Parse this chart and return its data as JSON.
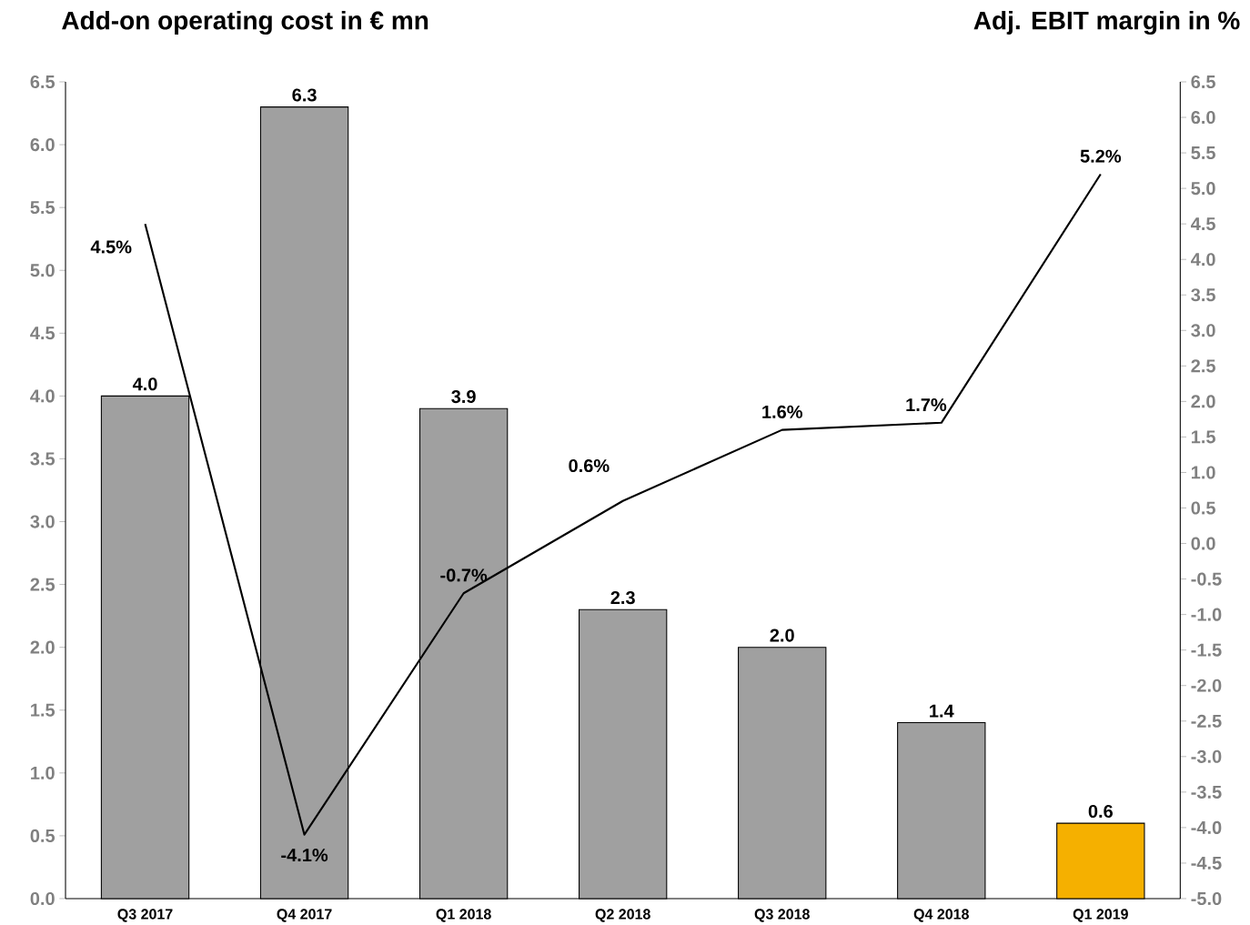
{
  "chart_data": {
    "type": "bar",
    "ylabel": "Add-on operating cost in € mn",
    "y2label": "Adj. EBIT margin in %",
    "categories": [
      "Q3 2017",
      "Q4 2017",
      "Q1 2018",
      "Q2 2018",
      "Q3 2018",
      "Q4 2018",
      "Q1 2019"
    ],
    "series": [
      {
        "colors": [
          "#a0a0a0",
          "#a0a0a0",
          "#a0a0a0",
          "#a0a0a0",
          "#a0a0a0",
          "#a0a0a0",
          "#f5b000"
        ],
        "values": [
          4.0,
          6.3,
          3.9,
          2.3,
          2.0,
          1.4,
          0.6
        ],
        "value_labels": [
          "4.0",
          "6.3",
          "3.9",
          "2.3",
          "2.0",
          "1.4",
          "0.6"
        ]
      },
      {
        "type": "line",
        "axis": "y2",
        "color": "#000000",
        "values": [
          4.5,
          -4.1,
          -0.7,
          0.6,
          1.6,
          1.7,
          5.2
        ],
        "value_labels": [
          "4.5%",
          "-4.1%",
          "-0.7%",
          "0.6%",
          "1.6%",
          "1.7%",
          "5.2%"
        ]
      }
    ],
    "ylim": [
      0,
      6.5
    ],
    "yticks": [
      {
        "value": 0,
        "label": "0.0"
      },
      {
        "value": 0.5,
        "label": "0.5"
      },
      {
        "value": 1,
        "label": "1.0"
      },
      {
        "value": 1.5,
        "label": "1.5"
      },
      {
        "value": 2,
        "label": "2.0"
      },
      {
        "value": 2.5,
        "label": "2.5"
      },
      {
        "value": 3,
        "label": "3.0"
      },
      {
        "value": 3.5,
        "label": "3.5"
      },
      {
        "value": 4,
        "label": "4.0"
      },
      {
        "value": 4.5,
        "label": "4.5"
      },
      {
        "value": 5,
        "label": "5.0"
      },
      {
        "value": 5.5,
        "label": "5.5"
      },
      {
        "value": 6,
        "label": "6.0"
      },
      {
        "value": 6.5,
        "label": "6.5"
      }
    ],
    "y2lim": [
      -5,
      6.5
    ],
    "y2ticks": [
      {
        "value": -5,
        "label": "-5.0"
      },
      {
        "value": -4.5,
        "label": "-4.5"
      },
      {
        "value": -4,
        "label": "-4.0"
      },
      {
        "value": -3.5,
        "label": "-3.5"
      },
      {
        "value": -3,
        "label": "-3.0"
      },
      {
        "value": -2.5,
        "label": "-2.5"
      },
      {
        "value": -2,
        "label": "-2.0"
      },
      {
        "value": -1.5,
        "label": "-1.5"
      },
      {
        "value": -1,
        "label": "-1.0"
      },
      {
        "value": -0.5,
        "label": "-0.5"
      },
      {
        "value": 0,
        "label": "0.0"
      },
      {
        "value": 0.5,
        "label": "0.5"
      },
      {
        "value": 1,
        "label": "1.0"
      },
      {
        "value": 1.5,
        "label": "1.5"
      },
      {
        "value": 2,
        "label": "2.0"
      },
      {
        "value": 2.5,
        "label": "2.5"
      },
      {
        "value": 3,
        "label": "3.0"
      },
      {
        "value": 3.5,
        "label": "3.5"
      },
      {
        "value": 4,
        "label": "4.0"
      },
      {
        "value": 4.5,
        "label": "4.5"
      },
      {
        "value": 5,
        "label": "5.0"
      },
      {
        "value": 5.5,
        "label": "5.5"
      },
      {
        "value": 6,
        "label": "6.0"
      },
      {
        "value": 6.5,
        "label": "6.5"
      }
    ]
  }
}
